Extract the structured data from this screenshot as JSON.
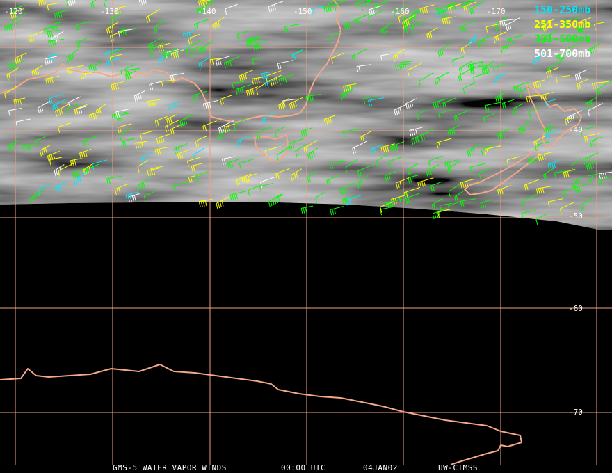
{
  "map": {
    "longitude_labels": [
      "-120",
      "-130",
      "-140",
      "-150",
      "-160",
      "-170"
    ],
    "latitude_labels": [
      "-40",
      "-50",
      "-60",
      "-70"
    ],
    "legend": [
      {
        "label": "150-250mb",
        "color": "#00e8ff"
      },
      {
        "label": "251-350mb",
        "color": "#ffff00"
      },
      {
        "label": "351-500mb",
        "color": "#00ff00"
      },
      {
        "label": "501-700mb",
        "color": "#ffffff"
      }
    ],
    "footer": [
      "GMS-5 WATER VAPOR WINDS",
      "00:00 UTC",
      "04JAN02",
      "UW-CIMSS"
    ]
  }
}
